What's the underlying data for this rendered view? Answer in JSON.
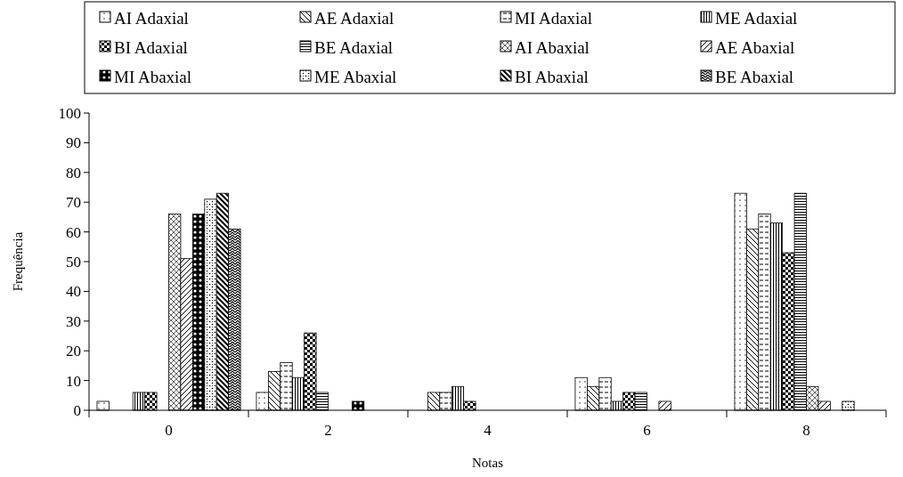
{
  "chart_data": {
    "type": "bar",
    "xlabel": "Notas",
    "ylabel": "Frequência",
    "categories": [
      "0",
      "2",
      "4",
      "6",
      "8"
    ],
    "ylim": [
      0,
      100
    ],
    "yticks": [
      0,
      10,
      20,
      30,
      40,
      50,
      60,
      70,
      80,
      90,
      100
    ],
    "grid": false,
    "legend": "top",
    "series": [
      {
        "name": "AI Adaxial",
        "color": "#000000",
        "values": [
          3,
          6,
          0,
          11,
          73
        ]
      },
      {
        "name": "AE Adaxial",
        "color": "#000000",
        "values": [
          0,
          13,
          6,
          8,
          61
        ]
      },
      {
        "name": "MI Adaxial",
        "color": "#000000",
        "values": [
          0,
          16,
          6,
          11,
          66
        ]
      },
      {
        "name": "ME Adaxial",
        "color": "#000000",
        "values": [
          6,
          11,
          8,
          3,
          63
        ]
      },
      {
        "name": "BI Adaxial",
        "color": "#000000",
        "values": [
          6,
          26,
          3,
          6,
          53
        ]
      },
      {
        "name": "BE Adaxial",
        "color": "#000000",
        "values": [
          0,
          6,
          0,
          6,
          73
        ]
      },
      {
        "name": "AI Abaxial",
        "color": "#000000",
        "values": [
          66,
          0,
          0,
          0,
          8
        ]
      },
      {
        "name": "AE Abaxial",
        "color": "#000000",
        "values": [
          51,
          0,
          0,
          3,
          3
        ]
      },
      {
        "name": "MI Abaxial",
        "color": "#000000",
        "values": [
          66,
          3,
          0,
          0,
          0
        ]
      },
      {
        "name": "ME Abaxial",
        "color": "#000000",
        "values": [
          71,
          0,
          0,
          0,
          3
        ]
      },
      {
        "name": "BI Abaxial",
        "color": "#000000",
        "values": [
          73,
          0,
          0,
          0,
          0
        ]
      },
      {
        "name": "BE Abaxial",
        "color": "#000000",
        "values": [
          61,
          0,
          0,
          0,
          0
        ]
      }
    ]
  }
}
